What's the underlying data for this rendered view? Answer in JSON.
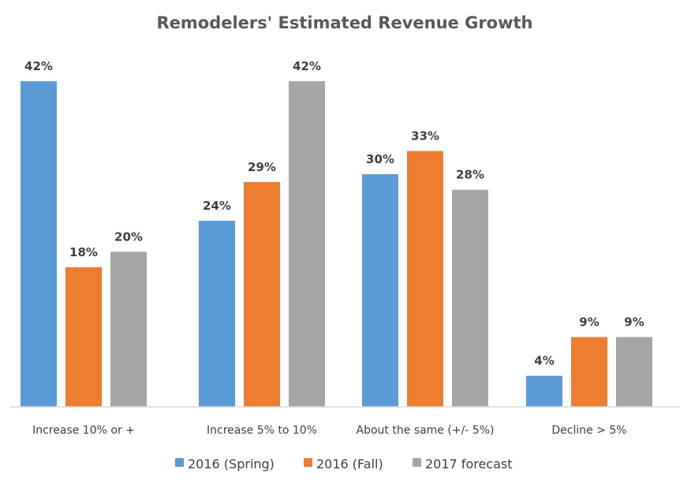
{
  "chart_data": {
    "type": "bar",
    "title": "Remodelers' Estimated Revenue Growth",
    "xlabel": "",
    "ylabel": "",
    "ylim": [
      0,
      42
    ],
    "grid": false,
    "legend_position": "bottom",
    "categories": [
      "Increase 10% or +",
      "Increase 5% to 10%",
      "About the same (+/- 5%)",
      "Decline > 5%"
    ],
    "series": [
      {
        "name": "2016 (Spring)",
        "color": "#5b9bd5",
        "values": [
          42,
          24,
          30,
          4
        ],
        "labels": [
          "42%",
          "24%",
          "30%",
          "4%"
        ]
      },
      {
        "name": "2016 (Fall)",
        "color": "#ed7d31",
        "values": [
          18,
          29,
          33,
          9
        ],
        "labels": [
          "18%",
          "29%",
          "33%",
          "9%"
        ]
      },
      {
        "name": "2017 forecast",
        "color": "#a5a5a5",
        "values": [
          20,
          42,
          28,
          9
        ],
        "labels": [
          "20%",
          "42%",
          "28%",
          "9%"
        ]
      }
    ]
  }
}
